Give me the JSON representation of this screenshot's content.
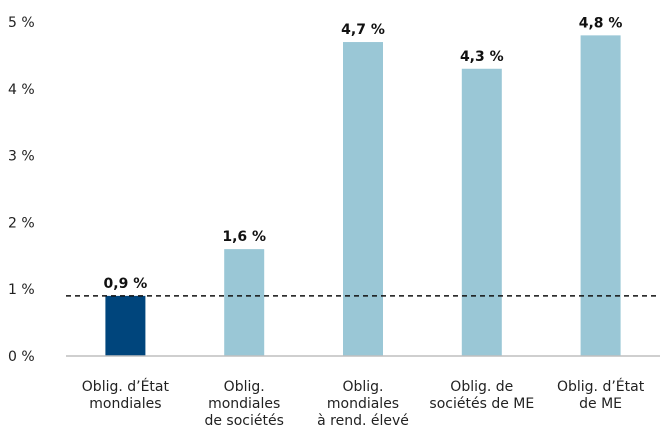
{
  "chart_data": {
    "type": "bar",
    "categories": [
      [
        "Oblig. d’État",
        "mondiales"
      ],
      [
        "Oblig.",
        "mondiales",
        "de sociétés"
      ],
      [
        "Oblig.",
        "mondiales",
        "à rend. élevé"
      ],
      [
        "Oblig. de",
        "sociétés de ME"
      ],
      [
        "Oblig. d’État",
        "de ME"
      ]
    ],
    "values": [
      0.9,
      1.6,
      4.7,
      4.3,
      4.8
    ],
    "data_labels": [
      "0,9 %",
      "1,6 %",
      "4,7 %",
      "4,3 %",
      "4,8 %"
    ],
    "bar_colors": [
      "#00457c",
      "#9ac7d6",
      "#9ac7d6",
      "#9ac7d6",
      "#9ac7d6"
    ],
    "yticks": [
      {
        "value": 0,
        "label": "0 %"
      },
      {
        "value": 1,
        "label": "1 %"
      },
      {
        "value": 2,
        "label": "2 %"
      },
      {
        "value": 3,
        "label": "3 %"
      },
      {
        "value": 4,
        "label": "4 %"
      },
      {
        "value": 5,
        "label": "5 %"
      }
    ],
    "ylim": [
      0,
      5
    ],
    "reference_line": {
      "value": 0.9,
      "style": "dashed",
      "color": "#111111"
    },
    "axis_line_color": "#bfbfbf",
    "grid": false,
    "legend": "none",
    "title": "",
    "xlabel": "",
    "ylabel": ""
  }
}
